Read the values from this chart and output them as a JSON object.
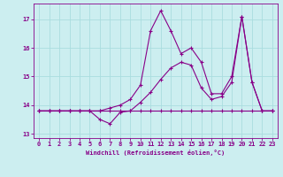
{
  "xlabel": "Windchill (Refroidissement éolien,°C)",
  "background_color": "#cceef0",
  "grid_color": "#aadddf",
  "line_color": "#880088",
  "xlim": [
    -0.5,
    23.5
  ],
  "ylim": [
    12.85,
    17.55
  ],
  "yticks": [
    13,
    14,
    15,
    16,
    17
  ],
  "xticks": [
    0,
    1,
    2,
    3,
    4,
    5,
    6,
    7,
    8,
    9,
    10,
    11,
    12,
    13,
    14,
    15,
    16,
    17,
    18,
    19,
    20,
    21,
    22,
    23
  ],
  "line1_x": [
    0,
    1,
    2,
    3,
    4,
    5,
    6,
    7,
    8,
    9,
    10,
    11,
    12,
    13,
    14,
    15,
    16,
    17,
    18,
    19,
    20,
    21,
    22,
    23
  ],
  "line1_y": [
    13.8,
    13.8,
    13.8,
    13.8,
    13.8,
    13.8,
    13.8,
    13.8,
    13.8,
    13.8,
    13.8,
    13.8,
    13.8,
    13.8,
    13.8,
    13.8,
    13.8,
    13.8,
    13.8,
    13.8,
    13.8,
    13.8,
    13.8,
    13.8
  ],
  "line2_x": [
    0,
    1,
    2,
    3,
    4,
    5,
    6,
    7,
    8,
    9,
    10,
    11,
    12,
    13,
    14,
    15,
    16,
    17,
    18,
    19,
    20,
    21,
    22,
    23
  ],
  "line2_y": [
    13.8,
    13.8,
    13.8,
    13.8,
    13.8,
    13.8,
    13.5,
    13.35,
    13.75,
    13.8,
    14.1,
    14.45,
    14.9,
    15.3,
    15.5,
    15.4,
    14.6,
    14.2,
    14.3,
    14.8,
    17.1,
    14.8,
    13.8,
    13.8
  ],
  "line3_x": [
    0,
    1,
    2,
    3,
    4,
    5,
    6,
    7,
    8,
    9,
    10,
    11,
    12,
    13,
    14,
    15,
    16,
    17,
    18,
    19,
    20,
    21,
    22,
    23
  ],
  "line3_y": [
    13.8,
    13.8,
    13.8,
    13.8,
    13.8,
    13.8,
    13.8,
    13.9,
    14.0,
    14.2,
    14.7,
    16.6,
    17.3,
    16.6,
    15.8,
    16.0,
    15.5,
    14.4,
    14.4,
    15.0,
    17.1,
    14.8,
    13.8,
    13.8
  ]
}
